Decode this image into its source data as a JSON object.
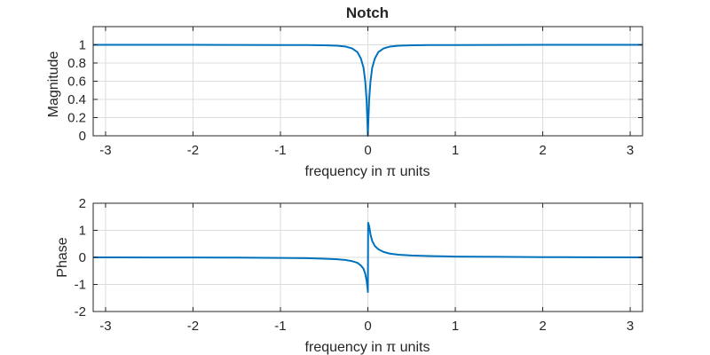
{
  "figure": {
    "title": "Notch"
  },
  "chart_data": [
    {
      "type": "line",
      "id": "magnitude",
      "xlabel": "frequency in π units",
      "ylabel": "Magnitude",
      "xlim": [
        -3.1416,
        3.1416
      ],
      "ylim": [
        0,
        1.2
      ],
      "xticks": [
        -3,
        -2,
        -1,
        0,
        1,
        2,
        3
      ],
      "yticks": [
        0,
        0.2,
        0.4,
        0.6,
        0.8,
        1
      ],
      "grid": true,
      "series_color": "#0072bd",
      "x": [
        -3.1416,
        -2.5,
        -2.0,
        -1.5,
        -1.0,
        -0.7,
        -0.5,
        -0.35,
        -0.25,
        -0.18,
        -0.12,
        -0.08,
        -0.05,
        -0.03,
        -0.015,
        -0.005,
        0,
        0.005,
        0.015,
        0.03,
        0.05,
        0.08,
        0.12,
        0.18,
        0.25,
        0.35,
        0.5,
        0.7,
        1.0,
        1.5,
        2.0,
        2.5,
        3.1416
      ],
      "y": [
        1.0,
        1.0,
        1.0,
        0.999,
        0.998,
        0.997,
        0.995,
        0.99,
        0.98,
        0.96,
        0.92,
        0.85,
        0.75,
        0.6,
        0.4,
        0.15,
        0,
        0.15,
        0.4,
        0.6,
        0.75,
        0.85,
        0.92,
        0.96,
        0.98,
        0.99,
        0.995,
        0.997,
        0.998,
        0.999,
        1.0,
        1.0,
        1.0
      ]
    },
    {
      "type": "line",
      "id": "phase",
      "xlabel": "frequency in π units",
      "ylabel": "Phase",
      "xlim": [
        -3.1416,
        3.1416
      ],
      "ylim": [
        -2,
        2
      ],
      "xticks": [
        -3,
        -2,
        -1,
        0,
        1,
        2,
        3
      ],
      "yticks": [
        -2,
        -1,
        0,
        1,
        2
      ],
      "grid": true,
      "series_color": "#0072bd",
      "x": [
        -3.1416,
        -2.5,
        -2.0,
        -1.5,
        -1.0,
        -0.7,
        -0.5,
        -0.35,
        -0.25,
        -0.18,
        -0.12,
        -0.08,
        -0.05,
        -0.03,
        -0.015,
        -0.003,
        0,
        0.003,
        0.015,
        0.03,
        0.05,
        0.08,
        0.12,
        0.18,
        0.25,
        0.35,
        0.5,
        0.7,
        1.0,
        1.5,
        2.0,
        2.5,
        3.1416
      ],
      "y": [
        0.0,
        -0.003,
        -0.006,
        -0.01,
        -0.02,
        -0.03,
        -0.05,
        -0.07,
        -0.1,
        -0.14,
        -0.2,
        -0.3,
        -0.42,
        -0.6,
        -0.85,
        -1.15,
        -1.28,
        1.28,
        1.15,
        0.85,
        0.6,
        0.42,
        0.3,
        0.2,
        0.14,
        0.1,
        0.07,
        0.05,
        0.03,
        0.02,
        0.01,
        0.006,
        0.0
      ]
    }
  ]
}
